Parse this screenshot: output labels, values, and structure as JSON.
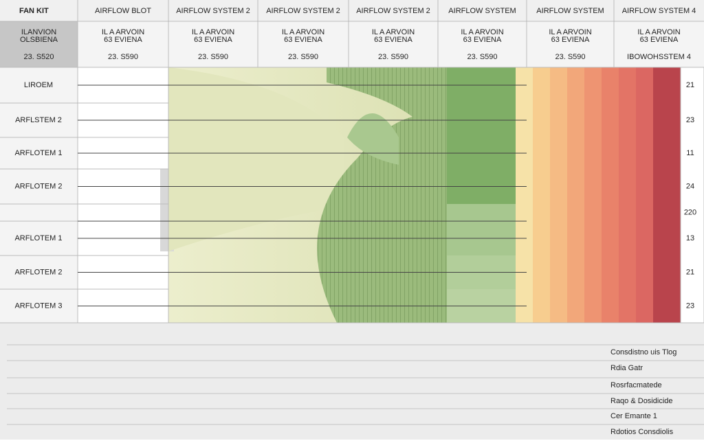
{
  "header": {
    "columns": [
      "FAN KIT",
      "AIRFLOW BLOT",
      "AIRFLOW SYSTEM 2",
      "AIRFLOW SYSTEM 2",
      "AIRFLOW SYSTEM 2",
      "AIRFLOW SYSTEM",
      "AIRFLOW SYSTEM",
      "AIRFLOW SYSTEM 4"
    ]
  },
  "subheader": {
    "cells": [
      {
        "line1": "ILANVION",
        "line2": "OLSBIENA",
        "value": "23. S520"
      },
      {
        "line1": "IL A ARVOIN",
        "line2": "63 EVIENA",
        "value": "23. S590"
      },
      {
        "line1": "IL A ARVOIN",
        "line2": "63 EVIENA",
        "value": "23. S590"
      },
      {
        "line1": "IL A ARVOIN",
        "line2": "63 EVIENA",
        "value": "23. S590"
      },
      {
        "line1": "IL A ARVOIN",
        "line2": "63 EVIENA",
        "value": "23. S590"
      },
      {
        "line1": "IL A ARVOIN",
        "line2": "63 EVIENA",
        "value": "23. S590"
      },
      {
        "line1": "IL A ARVOIN",
        "line2": "63 EVIENA",
        "value": "23. S590"
      },
      {
        "line1": "IL A ARVOIN",
        "line2": "63 EVIENA",
        "value": "IBOWOHSSTEM 4"
      }
    ]
  },
  "rows": [
    {
      "label": "LIROEM",
      "value": 21
    },
    {
      "label": "ARFLSTEM 2",
      "value": 23
    },
    {
      "label": "ARFLOTEM 1",
      "value": 11
    },
    {
      "label": "ARFLOTEM 2",
      "value": 24
    },
    {
      "label": null,
      "value": 220
    },
    {
      "label": "ARFLOTEM 1",
      "value": 13
    },
    {
      "label": "ARFLOTEM 2",
      "value": 21
    },
    {
      "label": "ARFLOTEM 3",
      "value": 23
    }
  ],
  "footer": {
    "items": [
      "Consdistno uis Tlog",
      "Rdia Gatr",
      "Rosrfacmatede",
      "Raqo & Dosidicide",
      "Cer Emante 1",
      "Rdotios Consdiolis"
    ]
  }
}
